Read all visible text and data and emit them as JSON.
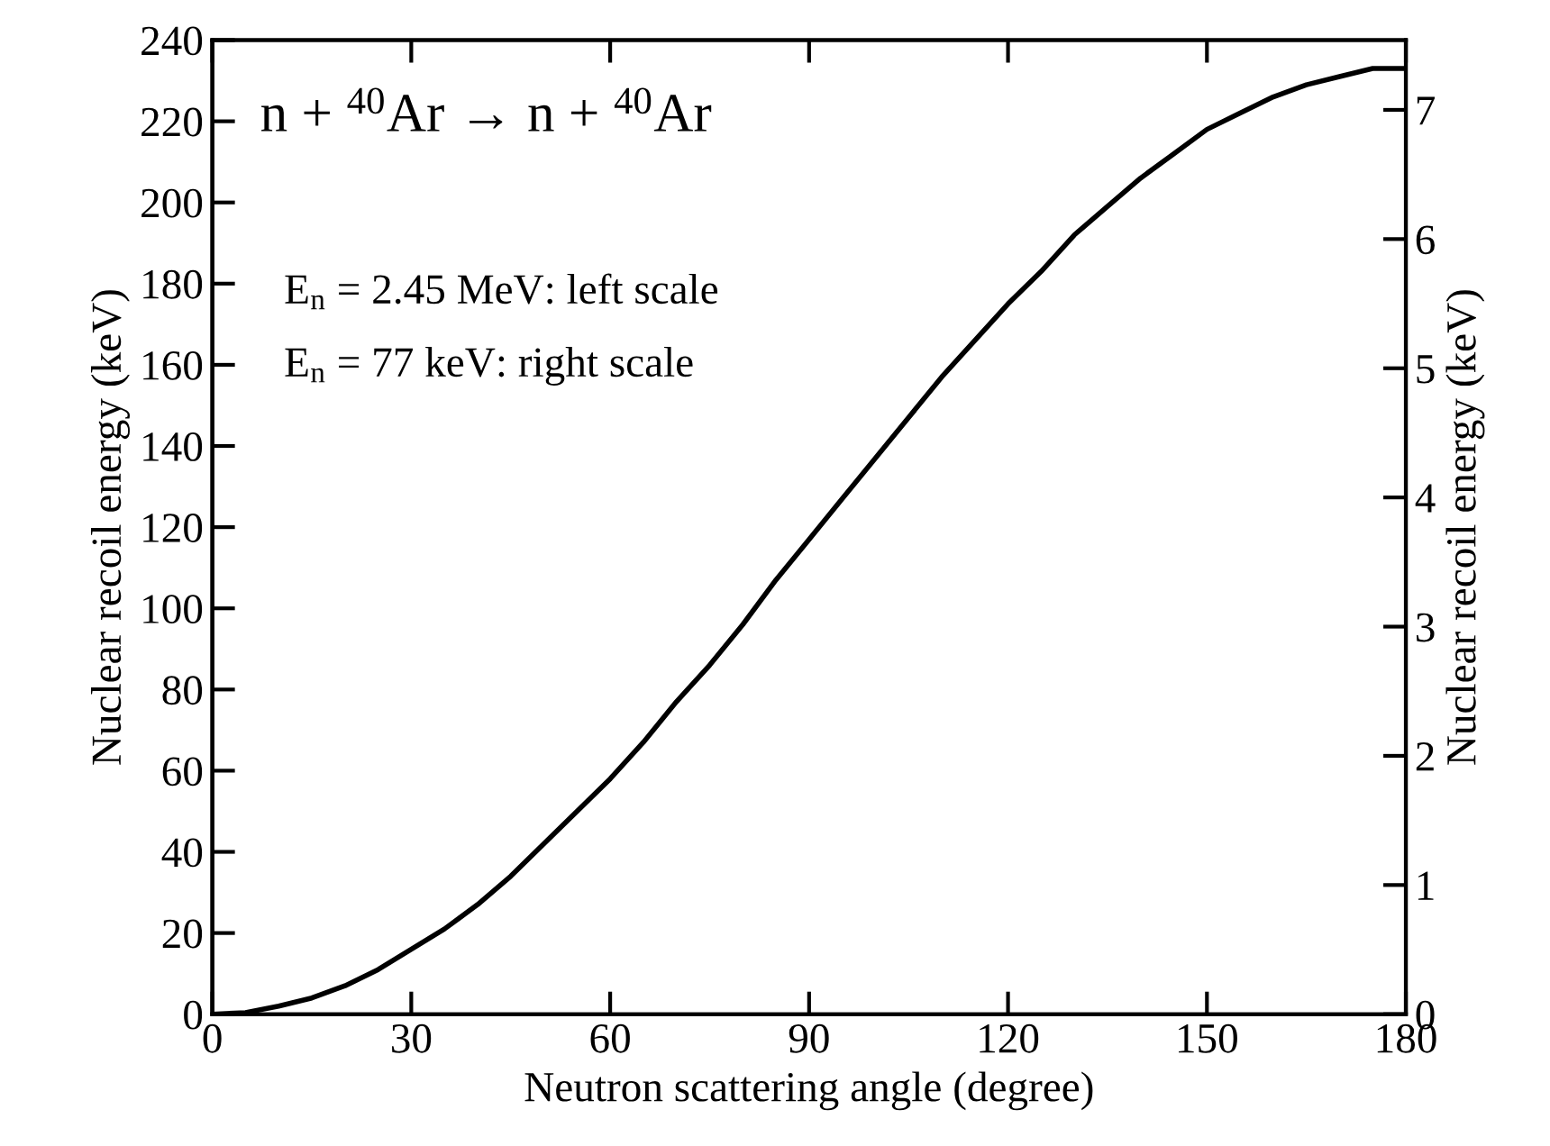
{
  "chart_data": {
    "type": "line",
    "xlabel": "Neutron scattering angle (degree)",
    "ylabel": "Nuclear recoil energy (keV)",
    "y2label": "Nuclear recoil energy (keV)",
    "annotations": [
      "n + $^{40}$Ar → n + $^{40}$Ar",
      "E$_{n}$ = 2.45 MeV: left scale",
      "E$_{n}$ = 77 keV: right scale"
    ],
    "series": [
      {
        "color": "#000000",
        "x": [
          0,
          5,
          10,
          15,
          20,
          25,
          30,
          35,
          40,
          45,
          50,
          55,
          60,
          65,
          70,
          75,
          80,
          85,
          90,
          95,
          100,
          105,
          110,
          115,
          120,
          125,
          130,
          135,
          140,
          145,
          150,
          155,
          160,
          165,
          170,
          175,
          180
        ],
        "values": [
          0,
          0.4,
          2,
          4,
          7,
          11,
          16,
          21,
          27,
          34,
          42,
          50,
          58,
          67,
          77,
          86,
          96,
          107,
          117,
          127,
          137,
          147,
          157,
          166,
          175,
          183,
          192,
          199,
          206,
          212,
          218,
          222,
          226,
          229,
          231,
          233,
          233
        ]
      }
    ],
    "xlim": [
      0,
      180
    ],
    "xticks": [
      0,
      30,
      60,
      90,
      120,
      150,
      180
    ],
    "ylim": [
      0,
      240
    ],
    "yticks": [
      0,
      20,
      40,
      60,
      80,
      100,
      120,
      140,
      160,
      180,
      200,
      220,
      240
    ],
    "y2lim": [
      0,
      7.54
    ],
    "y2ticks": [
      0,
      1,
      2,
      3,
      4,
      5,
      6,
      7
    ],
    "grid": false,
    "legend": false,
    "marker": "none",
    "line_style": "solid"
  }
}
